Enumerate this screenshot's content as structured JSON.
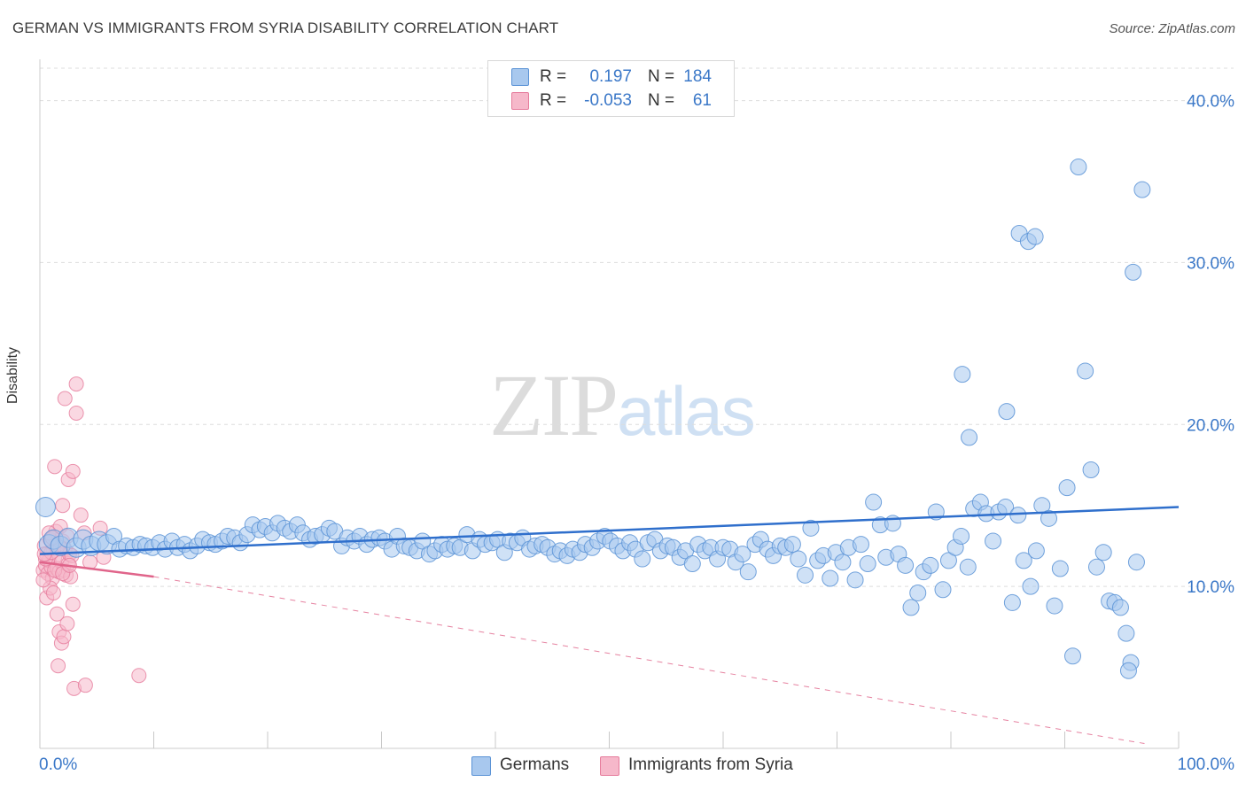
{
  "header": {
    "title": "GERMAN VS IMMIGRANTS FROM SYRIA DISABILITY CORRELATION CHART",
    "source": "Source: ZipAtlas.com"
  },
  "watermark": {
    "zip": "ZIP",
    "atlas": "atlas"
  },
  "legend": {
    "rows": [
      {
        "r_label": "R =",
        "r_value": "0.197",
        "n_label": "N =",
        "n_value": "184",
        "color": "#a8c8ee"
      },
      {
        "r_label": "R =",
        "r_value": "-0.053",
        "n_label": "N =",
        "n_value": "61",
        "color": "#f6b8ca"
      }
    ]
  },
  "bottom_legend": {
    "germans": "Germans",
    "syria": "Immigrants from Syria"
  },
  "colors": {
    "germans_fill": "#a8c8ee",
    "germans_stroke": "#5b93d6",
    "germans_line": "#2f6fcc",
    "syria_fill": "#f6b8ca",
    "syria_stroke": "#e67c9c",
    "syria_line": "#e0648a",
    "axis_text": "#3b78c8",
    "grid": "#dddddd"
  },
  "chart_data": {
    "type": "scatter",
    "title": "GERMAN VS IMMIGRANTS FROM SYRIA DISABILITY CORRELATION CHART",
    "ylabel": "Disability",
    "xlabel": "",
    "xlim": [
      0,
      100
    ],
    "ylim": [
      0,
      42
    ],
    "x_tick_labels": [
      "0.0%",
      "100.0%"
    ],
    "y_ticks": [
      10,
      20,
      30,
      40
    ],
    "y_tick_labels": [
      "10.0%",
      "20.0%",
      "30.0%",
      "40.0%"
    ],
    "grid": "horizontal dashed",
    "series": [
      {
        "name": "Germans",
        "r": 0.197,
        "n": 184,
        "trend": {
          "x": [
            0,
            100
          ],
          "y": [
            12.0,
            14.9
          ]
        },
        "points": [
          [
            0.5,
            14.9
          ],
          [
            0.8,
            12.6
          ],
          [
            1.2,
            12.9
          ],
          [
            1.8,
            12.5
          ],
          [
            2.5,
            13.0
          ],
          [
            3.2,
            12.4
          ],
          [
            3.8,
            12.9
          ],
          [
            4.5,
            12.5
          ],
          [
            5.2,
            12.8
          ],
          [
            5.9,
            12.6
          ],
          [
            6.5,
            13.1
          ],
          [
            7.0,
            12.3
          ],
          [
            7.6,
            12.5
          ],
          [
            8.2,
            12.4
          ],
          [
            8.8,
            12.6
          ],
          [
            9.3,
            12.5
          ],
          [
            9.9,
            12.4
          ],
          [
            10.5,
            12.7
          ],
          [
            11.0,
            12.3
          ],
          [
            11.6,
            12.8
          ],
          [
            12.1,
            12.4
          ],
          [
            12.7,
            12.6
          ],
          [
            13.2,
            12.2
          ],
          [
            13.8,
            12.5
          ],
          [
            14.3,
            12.9
          ],
          [
            14.9,
            12.7
          ],
          [
            15.4,
            12.6
          ],
          [
            16.0,
            12.8
          ],
          [
            16.5,
            13.1
          ],
          [
            17.1,
            13.0
          ],
          [
            17.6,
            12.7
          ],
          [
            18.2,
            13.2
          ],
          [
            18.7,
            13.8
          ],
          [
            19.3,
            13.5
          ],
          [
            19.8,
            13.7
          ],
          [
            20.4,
            13.3
          ],
          [
            20.9,
            13.9
          ],
          [
            21.5,
            13.6
          ],
          [
            22.0,
            13.4
          ],
          [
            22.6,
            13.8
          ],
          [
            23.1,
            13.3
          ],
          [
            23.7,
            12.9
          ],
          [
            24.2,
            13.1
          ],
          [
            24.8,
            13.2
          ],
          [
            25.4,
            13.6
          ],
          [
            25.9,
            13.4
          ],
          [
            26.5,
            12.5
          ],
          [
            27.0,
            13.0
          ],
          [
            27.6,
            12.8
          ],
          [
            28.1,
            13.1
          ],
          [
            28.7,
            12.6
          ],
          [
            29.2,
            12.9
          ],
          [
            29.8,
            13.0
          ],
          [
            30.3,
            12.8
          ],
          [
            30.9,
            12.3
          ],
          [
            31.4,
            13.1
          ],
          [
            32.0,
            12.5
          ],
          [
            32.5,
            12.4
          ],
          [
            33.1,
            12.2
          ],
          [
            33.6,
            12.8
          ],
          [
            34.2,
            12.0
          ],
          [
            34.7,
            12.2
          ],
          [
            35.3,
            12.6
          ],
          [
            35.8,
            12.3
          ],
          [
            36.4,
            12.5
          ],
          [
            36.9,
            12.4
          ],
          [
            37.5,
            13.2
          ],
          [
            38.0,
            12.2
          ],
          [
            38.6,
            12.9
          ],
          [
            39.1,
            12.6
          ],
          [
            39.7,
            12.7
          ],
          [
            40.2,
            12.9
          ],
          [
            40.8,
            12.1
          ],
          [
            41.3,
            12.8
          ],
          [
            41.9,
            12.7
          ],
          [
            42.4,
            13.0
          ],
          [
            43.0,
            12.3
          ],
          [
            43.5,
            12.5
          ],
          [
            44.1,
            12.6
          ],
          [
            44.6,
            12.4
          ],
          [
            45.2,
            12.0
          ],
          [
            45.7,
            12.2
          ],
          [
            46.3,
            11.9
          ],
          [
            46.8,
            12.3
          ],
          [
            47.4,
            12.1
          ],
          [
            47.9,
            12.6
          ],
          [
            48.5,
            12.4
          ],
          [
            49.0,
            12.8
          ],
          [
            49.6,
            13.1
          ],
          [
            50.1,
            12.8
          ],
          [
            50.7,
            12.5
          ],
          [
            51.2,
            12.2
          ],
          [
            51.8,
            12.7
          ],
          [
            52.3,
            12.3
          ],
          [
            52.9,
            11.7
          ],
          [
            53.4,
            12.7
          ],
          [
            54.0,
            12.9
          ],
          [
            54.5,
            12.2
          ],
          [
            55.1,
            12.5
          ],
          [
            55.6,
            12.4
          ],
          [
            56.2,
            11.8
          ],
          [
            56.7,
            12.2
          ],
          [
            57.3,
            11.4
          ],
          [
            57.8,
            12.6
          ],
          [
            58.4,
            12.2
          ],
          [
            58.9,
            12.4
          ],
          [
            59.5,
            11.7
          ],
          [
            60.0,
            12.4
          ],
          [
            60.6,
            12.3
          ],
          [
            61.1,
            11.5
          ],
          [
            61.7,
            12.0
          ],
          [
            62.2,
            10.9
          ],
          [
            62.8,
            12.6
          ],
          [
            63.3,
            12.9
          ],
          [
            63.9,
            12.3
          ],
          [
            64.4,
            11.9
          ],
          [
            65.0,
            12.5
          ],
          [
            65.5,
            12.4
          ],
          [
            66.1,
            12.6
          ],
          [
            66.6,
            11.7
          ],
          [
            67.2,
            10.7
          ],
          [
            67.7,
            13.6
          ],
          [
            68.3,
            11.6
          ],
          [
            68.8,
            11.9
          ],
          [
            69.4,
            10.5
          ],
          [
            69.9,
            12.1
          ],
          [
            70.5,
            11.5
          ],
          [
            71.0,
            12.4
          ],
          [
            71.6,
            10.4
          ],
          [
            72.1,
            12.6
          ],
          [
            72.7,
            11.4
          ],
          [
            73.2,
            15.2
          ],
          [
            73.8,
            13.8
          ],
          [
            74.3,
            11.8
          ],
          [
            74.9,
            13.9
          ],
          [
            75.4,
            12.0
          ],
          [
            76.0,
            11.3
          ],
          [
            76.5,
            8.7
          ],
          [
            77.1,
            9.6
          ],
          [
            77.6,
            10.9
          ],
          [
            78.2,
            11.3
          ],
          [
            78.7,
            14.6
          ],
          [
            79.3,
            9.8
          ],
          [
            79.8,
            11.6
          ],
          [
            80.4,
            12.4
          ],
          [
            80.9,
            13.1
          ],
          [
            81.5,
            11.2
          ],
          [
            82.0,
            14.8
          ],
          [
            82.6,
            15.2
          ],
          [
            83.1,
            14.5
          ],
          [
            83.7,
            12.8
          ],
          [
            84.2,
            14.6
          ],
          [
            84.8,
            14.9
          ],
          [
            85.4,
            9.0
          ],
          [
            85.9,
            14.4
          ],
          [
            86.4,
            11.6
          ],
          [
            87.0,
            10.0
          ],
          [
            87.5,
            12.2
          ],
          [
            88.0,
            15.0
          ],
          [
            88.6,
            14.2
          ],
          [
            89.1,
            8.8
          ],
          [
            89.6,
            11.1
          ],
          [
            90.2,
            16.1
          ],
          [
            90.7,
            5.7
          ],
          [
            91.2,
            35.9
          ],
          [
            91.8,
            23.3
          ],
          [
            92.3,
            17.2
          ],
          [
            92.8,
            11.2
          ],
          [
            93.4,
            12.1
          ],
          [
            93.9,
            9.1
          ],
          [
            94.4,
            9.0
          ],
          [
            94.9,
            8.7
          ],
          [
            95.4,
            7.1
          ],
          [
            95.8,
            5.3
          ],
          [
            96.3,
            11.5
          ],
          [
            96.8,
            34.5
          ],
          [
            96.0,
            29.4
          ],
          [
            84.9,
            20.8
          ],
          [
            86.0,
            31.8
          ],
          [
            86.8,
            31.3
          ],
          [
            87.4,
            31.6
          ],
          [
            81.6,
            19.2
          ],
          [
            81.0,
            23.1
          ],
          [
            95.6,
            4.8
          ]
        ]
      },
      {
        "name": "Immigrants from Syria",
        "r": -0.053,
        "n": 61,
        "trend_solid": {
          "x": [
            0,
            10
          ],
          "y": [
            11.5,
            10.6
          ]
        },
        "trend_dashed": {
          "x": [
            10,
            97
          ],
          "y": [
            10.6,
            0.3
          ]
        },
        "points": [
          [
            0.3,
            11.0
          ],
          [
            0.4,
            12.5
          ],
          [
            0.5,
            11.3
          ],
          [
            0.6,
            12.0
          ],
          [
            0.7,
            10.8
          ],
          [
            0.8,
            11.6
          ],
          [
            0.9,
            12.9
          ],
          [
            1.0,
            11.2
          ],
          [
            1.1,
            10.5
          ],
          [
            1.2,
            12.2
          ],
          [
            1.3,
            11.8
          ],
          [
            1.4,
            13.4
          ],
          [
            1.5,
            11.1
          ],
          [
            1.6,
            12.6
          ],
          [
            1.7,
            10.9
          ],
          [
            1.8,
            13.7
          ],
          [
            1.9,
            11.5
          ],
          [
            2.0,
            12.8
          ],
          [
            2.1,
            11.0
          ],
          [
            2.2,
            12.3
          ],
          [
            2.3,
            10.7
          ],
          [
            2.4,
            13.1
          ],
          [
            2.5,
            11.4
          ],
          [
            2.6,
            12.0
          ],
          [
            2.7,
            10.6
          ],
          [
            2.8,
            11.9
          ],
          [
            0.6,
            9.3
          ],
          [
            0.9,
            9.9
          ],
          [
            1.2,
            9.6
          ],
          [
            1.5,
            8.3
          ],
          [
            1.7,
            7.2
          ],
          [
            1.9,
            6.5
          ],
          [
            2.1,
            6.9
          ],
          [
            2.4,
            7.7
          ],
          [
            1.6,
            5.1
          ],
          [
            2.0,
            15.0
          ],
          [
            2.5,
            16.6
          ],
          [
            1.3,
            17.4
          ],
          [
            2.9,
            17.1
          ],
          [
            2.2,
            21.6
          ],
          [
            3.2,
            22.5
          ],
          [
            3.2,
            20.7
          ],
          [
            3.6,
            14.4
          ],
          [
            3.9,
            13.3
          ],
          [
            4.4,
            11.5
          ],
          [
            5.3,
            13.6
          ],
          [
            5.6,
            11.8
          ],
          [
            2.9,
            8.9
          ],
          [
            3.0,
            3.7
          ],
          [
            4.0,
            3.9
          ],
          [
            8.7,
            4.5
          ],
          [
            0.3,
            10.4
          ],
          [
            0.5,
            11.7
          ],
          [
            0.8,
            13.3
          ],
          [
            1.0,
            12.1
          ],
          [
            1.3,
            11.0
          ],
          [
            1.8,
            12.4
          ],
          [
            2.0,
            10.8
          ],
          [
            2.6,
            11.3
          ],
          [
            0.4,
            12.0
          ],
          [
            1.1,
            13.0
          ]
        ]
      }
    ]
  }
}
